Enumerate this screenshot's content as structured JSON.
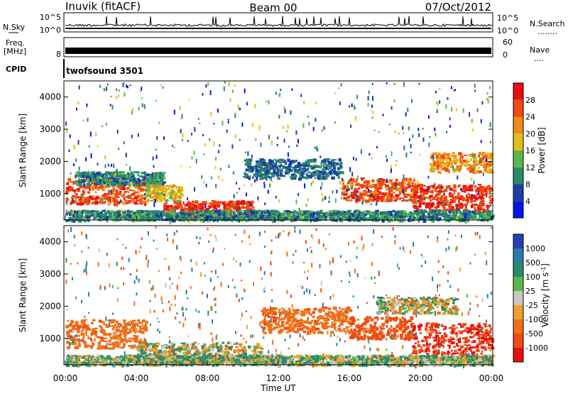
{
  "header": {
    "station": "Inuvik (fitACF)",
    "beam": "Beam 00",
    "date": "07/Oct/2012"
  },
  "panels": {
    "nsky": {
      "label": "N.Sky",
      "ticks_right": [
        "10^5",
        "10^0"
      ],
      "ticks_left": [
        "10^5",
        "10^0"
      ],
      "side_label": "N.Search",
      "side_dots": "........"
    },
    "freq": {
      "label_top": "Freq.",
      "label_bottom": "[MHz]",
      "tick_left_low": "8",
      "ticks_right": [
        "60",
        "0"
      ],
      "side_label": "Nave",
      "side_dots": "...."
    },
    "cpid": {
      "label": "CPID",
      "value": "twofsound 3501"
    }
  },
  "x_axis": {
    "label": "Time UT",
    "ticks": [
      "00:00",
      "04:00",
      "08:00",
      "12:00",
      "16:00",
      "20:00",
      "00:00"
    ]
  },
  "colors": {
    "power": [
      "#0018e0",
      "#1c3fa4",
      "#2a8a6a",
      "#5ab84a",
      "#e0c018",
      "#f08a18",
      "#f04a10",
      "#e81010"
    ],
    "velocity": [
      "#2a3fb0",
      "#2a7ab0",
      "#2a8a6a",
      "#5ab84a",
      "#c8c8c0",
      "#f0a030",
      "#f07018",
      "#f04a10",
      "#e81010"
    ]
  },
  "chart_data": [
    {
      "type": "heatmap",
      "title": "Power",
      "xlabel": "Time UT",
      "ylabel": "Slant Range [km]",
      "x_range_hours": [
        0,
        24
      ],
      "ylim": [
        180,
        4500
      ],
      "y_ticks": [
        1000,
        2000,
        3000,
        4000
      ],
      "colorbar": {
        "label": "Power [dB]",
        "ticks": [
          4,
          8,
          12,
          16,
          20,
          24,
          28
        ]
      },
      "regions": [
        {
          "t0": 0.0,
          "t1": 4.5,
          "r0": 700,
          "r1": 1500,
          "value": 26
        },
        {
          "t0": 0.5,
          "t1": 5.5,
          "r0": 1300,
          "r1": 1700,
          "value": 10
        },
        {
          "t0": 5.5,
          "t1": 10.5,
          "r0": 250,
          "r1": 800,
          "value": 28
        },
        {
          "t0": 4.5,
          "t1": 6.5,
          "r0": 800,
          "r1": 1300,
          "value": 18
        },
        {
          "t0": 10.0,
          "t1": 15.5,
          "r0": 1500,
          "r1": 2100,
          "value": 8
        },
        {
          "t0": 15.5,
          "t1": 20.0,
          "r0": 800,
          "r1": 1500,
          "value": 26
        },
        {
          "t0": 19.5,
          "t1": 24.0,
          "r0": 500,
          "r1": 1300,
          "value": 28
        },
        {
          "t0": 20.5,
          "t1": 24.0,
          "r0": 1700,
          "r1": 2300,
          "value": 22
        },
        {
          "t0": 0.0,
          "t1": 24.0,
          "r0": 200,
          "r1": 500,
          "value": 10
        }
      ]
    },
    {
      "type": "heatmap",
      "title": "Velocity",
      "xlabel": "Time UT",
      "ylabel": "Slant Range [km]",
      "x_range_hours": [
        0,
        24
      ],
      "ylim": [
        180,
        4500
      ],
      "y_ticks": [
        1000,
        2000,
        3000,
        4000
      ],
      "colorbar": {
        "label": "Velocity [m s^-1]",
        "ticks": [
          1000,
          500,
          100,
          25,
          -25,
          -100,
          -500,
          -1000
        ]
      },
      "regions": [
        {
          "t0": 0.0,
          "t1": 4.5,
          "r0": 700,
          "r1": 1600,
          "value": -300
        },
        {
          "t0": 4.0,
          "t1": 11.0,
          "r0": 250,
          "r1": 900,
          "value": 0
        },
        {
          "t0": 11.0,
          "t1": 16.0,
          "r0": 1200,
          "r1": 2000,
          "value": -300
        },
        {
          "t0": 16.0,
          "t1": 19.5,
          "r0": 1000,
          "r1": 1700,
          "value": -500
        },
        {
          "t0": 19.5,
          "t1": 24.0,
          "r0": 400,
          "r1": 1500,
          "value": -700
        },
        {
          "t0": 17.5,
          "t1": 22.0,
          "r0": 1800,
          "r1": 2300,
          "value": 0
        },
        {
          "t0": 0.0,
          "t1": 24.0,
          "r0": 200,
          "r1": 500,
          "value": 50
        }
      ]
    }
  ]
}
